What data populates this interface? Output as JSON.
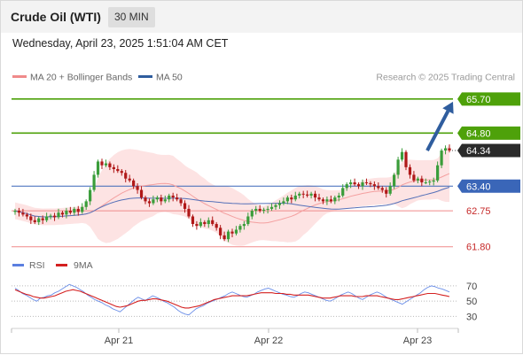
{
  "header": {
    "instrument": "Crude Oil (WTI)",
    "timeframe": "30 MIN"
  },
  "timestamp": "Wednesday, April 23, 2025 1:51:04 AM CET",
  "legend": {
    "ma20_bb": "MA 20 + Bollinger Bands",
    "ma50": "MA 50",
    "copyright": "Research © 2025 Trading Central"
  },
  "rsi_legend": {
    "rsi": "RSI",
    "ma9": "9MA"
  },
  "colors": {
    "candle_up": "#3a9d3a",
    "candle_down": "#b01818",
    "ma20": "#f4a0a0",
    "bollinger_fill": "#fde3e3",
    "ma50": "#5570b8",
    "resistance": "#4ea10a",
    "current": "#2a2a2a",
    "pivot": "#3a66b8",
    "support": "#f08a8a",
    "support_text": "#c62828",
    "arrow": "#2f5d9e",
    "rsi_line": "#6a8ee8",
    "rsi_ma": "#d42020"
  },
  "chart_data": [
    {
      "type": "candlestick",
      "title": "Crude Oil (WTI)",
      "timeframe": "30 MIN",
      "x_ticks": [
        "Apr 21",
        "Apr 22",
        "Apr 23"
      ],
      "ylim": [
        61.7,
        66.0
      ],
      "indicators": [
        "MA 20 + Bollinger Bands",
        "MA 50"
      ],
      "levels": [
        {
          "value": 65.7,
          "label": "65.70",
          "kind": "target"
        },
        {
          "value": 64.8,
          "label": "64.80",
          "kind": "resistance"
        },
        {
          "value": 64.34,
          "label": "64.34",
          "kind": "current"
        },
        {
          "value": 63.4,
          "label": "63.40",
          "kind": "pivot"
        },
        {
          "value": 62.75,
          "label": "62.75",
          "kind": "support"
        },
        {
          "value": 61.8,
          "label": "61.80",
          "kind": "support"
        }
      ],
      "arrow": {
        "from": 64.34,
        "to": 65.7,
        "direction": "up"
      },
      "close_series": [
        62.75,
        62.7,
        62.65,
        62.6,
        62.5,
        62.45,
        62.55,
        62.5,
        62.6,
        62.62,
        62.58,
        62.7,
        62.65,
        62.75,
        62.7,
        62.8,
        62.72,
        62.85,
        63.0,
        63.3,
        63.7,
        64.05,
        63.95,
        64.0,
        63.9,
        63.85,
        63.8,
        63.75,
        63.6,
        63.55,
        63.4,
        63.3,
        63.1,
        63.0,
        62.95,
        63.05,
        63.1,
        63.0,
        63.05,
        63.15,
        63.1,
        63.05,
        62.95,
        62.8,
        62.6,
        62.4,
        62.35,
        62.45,
        62.4,
        62.5,
        62.4,
        62.3,
        62.1,
        62.0,
        62.2,
        62.15,
        62.25,
        62.35,
        62.4,
        62.6,
        62.75,
        62.8,
        62.75,
        62.78,
        62.8,
        62.85,
        62.9,
        62.95,
        63.0,
        63.1,
        63.05,
        63.15,
        63.2,
        63.18,
        63.15,
        63.2,
        63.1,
        63.05,
        63.0,
        63.05,
        63.0,
        63.1,
        63.15,
        63.35,
        63.45,
        63.5,
        63.45,
        63.4,
        63.5,
        63.48,
        63.45,
        63.4,
        63.35,
        63.3,
        63.2,
        63.4,
        63.7,
        64.1,
        64.3,
        63.9,
        63.7,
        63.55,
        63.6,
        63.5,
        63.5,
        63.52,
        63.55,
        63.95,
        64.34,
        64.4,
        64.34
      ],
      "series": [
        {
          "name": "MA 20 + Bollinger Bands",
          "values": []
        },
        {
          "name": "MA 50",
          "values": []
        }
      ]
    },
    {
      "type": "line",
      "title": "RSI",
      "ylim": [
        20,
        85
      ],
      "y_ticks": [
        30,
        50,
        70
      ],
      "series": [
        {
          "name": "RSI",
          "values": [
            67,
            64,
            60,
            58,
            55,
            52,
            50,
            54,
            55,
            57,
            58,
            61,
            63,
            66,
            69,
            72,
            70,
            68,
            65,
            62,
            58,
            55,
            52,
            50,
            48,
            45,
            43,
            40,
            38,
            36,
            40,
            44,
            48,
            52,
            55,
            53,
            51,
            54,
            57,
            55,
            53,
            50,
            48,
            45,
            42,
            38,
            35,
            33,
            32,
            36,
            40,
            42,
            44,
            47,
            49,
            51,
            53,
            55,
            57,
            60,
            62,
            60,
            58,
            56,
            55,
            57,
            59,
            62,
            64,
            66,
            67,
            65,
            63,
            61,
            59,
            58,
            56,
            55,
            57,
            60,
            62,
            61,
            59,
            57,
            55,
            53,
            51,
            50,
            52,
            55,
            58,
            60,
            62,
            60,
            57,
            54,
            52,
            55,
            58,
            60,
            62,
            60,
            57,
            54,
            52,
            50,
            48,
            46,
            49,
            52,
            55,
            58,
            61,
            65,
            68,
            70,
            69,
            67,
            66,
            64,
            62
          ]
        },
        {
          "name": "9MA",
          "values": [
            65,
            63,
            61,
            59,
            58,
            56,
            55,
            54,
            54,
            55,
            56,
            57,
            59,
            61,
            63,
            64,
            65,
            64,
            63,
            61,
            59,
            57,
            55,
            53,
            51,
            49,
            47,
            45,
            43,
            42,
            43,
            44,
            46,
            48,
            50,
            51,
            51,
            52,
            53,
            53,
            52,
            51,
            50,
            48,
            46,
            44,
            42,
            41,
            41,
            42,
            43,
            44,
            46,
            48,
            50,
            52,
            53,
            54,
            55,
            56,
            57,
            57,
            57,
            57,
            57,
            58,
            59,
            60,
            61,
            61,
            61,
            61,
            60,
            60,
            60,
            59,
            59,
            58,
            58,
            58,
            58,
            58,
            57,
            56,
            55,
            54,
            54,
            54,
            55,
            56,
            57,
            57,
            57,
            57,
            56,
            56,
            56,
            57,
            57,
            57,
            57,
            56,
            55,
            54,
            53,
            52,
            52,
            53,
            54,
            55,
            56,
            57,
            58,
            59,
            60,
            60,
            60,
            59,
            58,
            57,
            56
          ]
        }
      ]
    }
  ]
}
